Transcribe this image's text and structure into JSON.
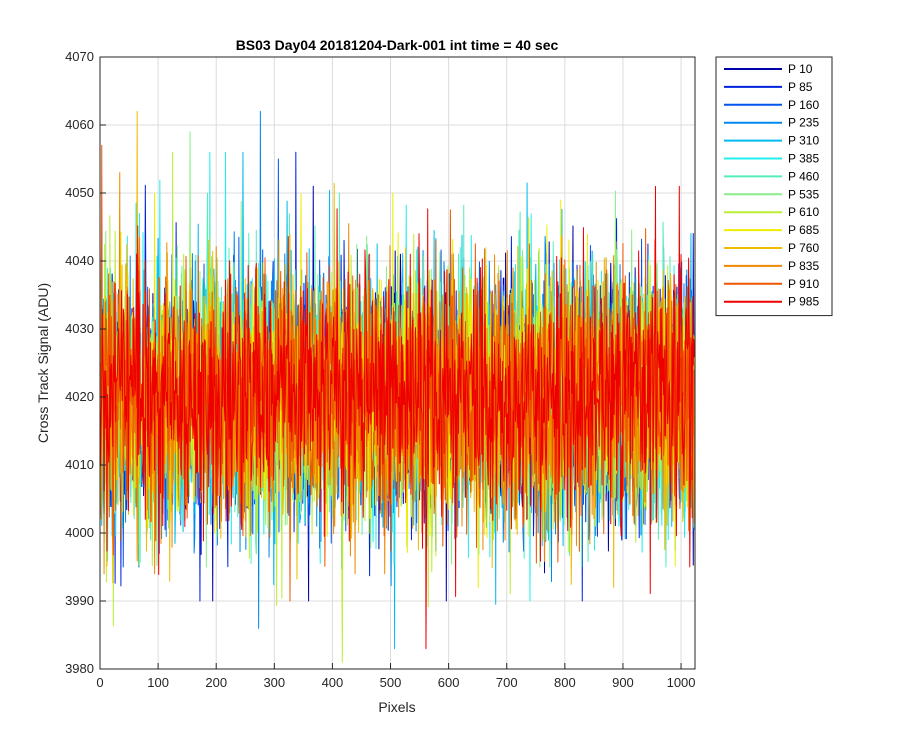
{
  "chart_data": {
    "type": "line",
    "title": "BS03 Day04 20181204-Dark-001 int time = 40 sec",
    "xlabel": "Pixels",
    "ylabel": "Cross Track Signal (ADU)",
    "xlim": [
      0,
      1024
    ],
    "ylim": [
      3980,
      4070
    ],
    "xticks": [
      0,
      100,
      200,
      300,
      400,
      500,
      600,
      700,
      800,
      900,
      1000
    ],
    "yticks": [
      3980,
      3990,
      4000,
      4010,
      4020,
      4030,
      4040,
      4050,
      4060,
      4070
    ],
    "grid": true,
    "legend_position": "outside-top-right",
    "n_points": 1024,
    "series": [
      {
        "name": "P 10",
        "color": "#0000aa",
        "mean": 4020,
        "min": 3990,
        "max": 4051
      },
      {
        "name": "P 85",
        "color": "#0022dd",
        "mean": 4020,
        "min": 3990,
        "max": 4056
      },
      {
        "name": "P 160",
        "color": "#0055ee",
        "mean": 4020,
        "min": 3995,
        "max": 4055
      },
      {
        "name": "P 235",
        "color": "#0088ee",
        "mean": 4020,
        "min": 3986,
        "max": 4062
      },
      {
        "name": "P 310",
        "color": "#00bbee",
        "mean": 4020,
        "min": 3983,
        "max": 4056
      },
      {
        "name": "P 385",
        "color": "#22eeee",
        "mean": 4020,
        "min": 3990,
        "max": 4056
      },
      {
        "name": "P 460",
        "color": "#55eebb",
        "mean": 4020,
        "min": 3995,
        "max": 4050
      },
      {
        "name": "P 535",
        "color": "#88ee88",
        "mean": 4020,
        "min": 3995,
        "max": 4059
      },
      {
        "name": "P 610",
        "color": "#bbee33",
        "mean": 4020,
        "min": 3981,
        "max": 4056
      },
      {
        "name": "P 685",
        "color": "#eeee00",
        "mean": 4020,
        "min": 3992,
        "max": 4050
      },
      {
        "name": "P 760",
        "color": "#eebb00",
        "mean": 4020,
        "min": 3992,
        "max": 4062
      },
      {
        "name": "P 835",
        "color": "#ee8800",
        "mean": 4020,
        "min": 3994,
        "max": 4053
      },
      {
        "name": "P 910",
        "color": "#ee5500",
        "mean": 4020,
        "min": 3990,
        "max": 4057
      },
      {
        "name": "P 985",
        "color": "#ee0000",
        "mean": 4020,
        "min": 3983,
        "max": 4051
      }
    ]
  }
}
